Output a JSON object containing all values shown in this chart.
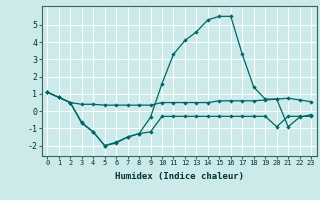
{
  "title": "",
  "xlabel": "Humidex (Indice chaleur)",
  "background_color": "#cdeaea",
  "grid_color": "#ffffff",
  "line_color": "#006666",
  "line1": {
    "x": [
      0,
      1,
      2,
      3,
      4,
      5,
      6,
      7,
      8,
      9,
      10,
      11,
      12,
      13,
      14,
      15,
      16,
      17,
      18,
      19,
      20,
      21,
      22,
      23
    ],
    "y": [
      1.1,
      0.8,
      0.5,
      0.4,
      0.4,
      0.35,
      0.35,
      0.35,
      0.35,
      0.35,
      0.5,
      0.5,
      0.5,
      0.5,
      0.5,
      0.6,
      0.6,
      0.6,
      0.6,
      0.65,
      0.7,
      0.75,
      0.65,
      0.55
    ]
  },
  "line2": {
    "x": [
      0,
      1,
      2,
      3,
      4,
      5,
      6,
      7,
      8,
      9,
      10,
      11,
      12,
      13,
      14,
      15,
      16,
      17,
      18,
      19,
      20,
      21,
      22,
      23
    ],
    "y": [
      1.1,
      0.8,
      0.5,
      -0.7,
      -1.2,
      -2.0,
      -1.8,
      -1.5,
      -1.3,
      -1.2,
      -0.3,
      -0.3,
      -0.3,
      -0.3,
      -0.3,
      -0.3,
      -0.3,
      -0.3,
      -0.3,
      -0.3,
      -0.9,
      -0.3,
      -0.3,
      -0.3
    ]
  },
  "line3": {
    "x": [
      0,
      1,
      2,
      3,
      4,
      5,
      6,
      7,
      8,
      9,
      10,
      11,
      12,
      13,
      14,
      15,
      16,
      17,
      18,
      19,
      20,
      21,
      22,
      23
    ],
    "y": [
      1.1,
      0.8,
      0.5,
      -0.65,
      -1.2,
      -2.0,
      -1.85,
      -1.5,
      -1.3,
      -0.35,
      1.6,
      3.3,
      4.1,
      4.6,
      5.3,
      5.5,
      5.5,
      3.3,
      1.4,
      0.7,
      0.7,
      -0.9,
      -0.35,
      -0.2
    ]
  },
  "xlim": [
    -0.5,
    23.5
  ],
  "ylim": [
    -2.6,
    6.1
  ],
  "yticks": [
    -2,
    -1,
    0,
    1,
    2,
    3,
    4,
    5
  ],
  "xticks": [
    0,
    1,
    2,
    3,
    4,
    5,
    6,
    7,
    8,
    9,
    10,
    11,
    12,
    13,
    14,
    15,
    16,
    17,
    18,
    19,
    20,
    21,
    22,
    23
  ],
  "tick_fontsize": 5.0,
  "ytick_fontsize": 6.0,
  "xlabel_fontsize": 6.5
}
